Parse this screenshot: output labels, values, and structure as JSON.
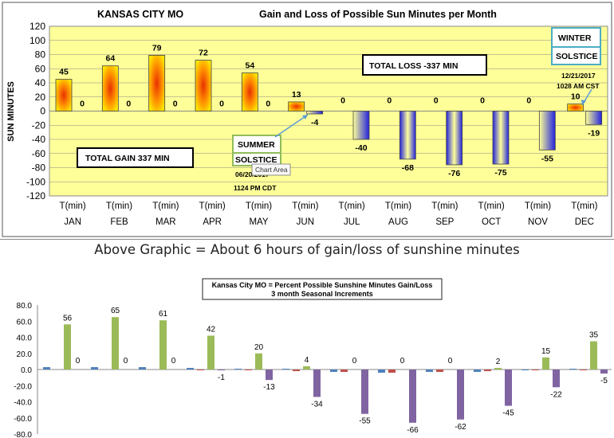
{
  "caption": "Above Graphic = About 6 hours of gain/loss of sunshine minutes",
  "chart_data": [
    {
      "type": "bar",
      "location": "KANSAS CITY MO",
      "title": "Gain and Loss of Possible Sun Minutes per Month",
      "ylabel": "SUN MINUTES",
      "ylim": [
        -120,
        120
      ],
      "y_ticks": [
        120,
        100,
        80,
        60,
        40,
        20,
        0,
        -20,
        -40,
        -60,
        -80,
        -100,
        -120
      ],
      "categories": [
        "JAN",
        "FEB",
        "MAR",
        "APR",
        "MAY",
        "JUN",
        "JUL",
        "AUG",
        "SEP",
        "OCT",
        "NOV",
        "DEC"
      ],
      "x_prefix": "T(min)",
      "series": [
        {
          "values": [
            45,
            64,
            79,
            72,
            54,
            13,
            0,
            0,
            0,
            0,
            0,
            10
          ]
        },
        {
          "values": [
            0,
            0,
            0,
            0,
            0,
            -4,
            -40,
            -68,
            -76,
            -75,
            -55,
            -19
          ]
        }
      ],
      "annotations": {
        "total_gain": "TOTAL GAIN   337 MIN",
        "total_loss": "TOTAL LOSS  -337 MIN",
        "summer_line1": "SUMMER",
        "summer_line2": "SOLSTICE",
        "summer_date": "06/20/2017",
        "summer_time": "1124 PM CDT",
        "winter_line1": "WINTER",
        "winter_line2": "SOLSTICE",
        "winter_date": "12/21/2017",
        "winter_time": "1028 AM CST",
        "tooltip": "Chart Area"
      },
      "colors": {
        "plot_bg": "#ffff99",
        "gain": "#ffd200",
        "gain_core": "#e83000",
        "loss": "#2828e0",
        "loss_fade": "#ffff99",
        "grid": "#888888"
      },
      "grid": true
    },
    {
      "type": "bar",
      "title": "Kansas City MO = Percent Possible Sunshine Minutes Gain/Loss",
      "subtitle": "3 month Seasonal Increments",
      "ylim": [
        -80,
        80
      ],
      "y_ticks": [
        "80.0",
        "60.0",
        "40.0",
        "20.0",
        "0.0",
        "-20.0",
        "-40.0",
        "-60.0",
        "-80.0"
      ],
      "groups": 12,
      "series": [
        {
          "color": "#4f81bd",
          "values": [
            3,
            3,
            3,
            2,
            1,
            1,
            -3,
            -4,
            -3,
            -3,
            -1,
            1
          ],
          "labels": []
        },
        {
          "color": "#c0504d",
          "values": [
            0,
            0,
            0,
            -1,
            -1,
            -2,
            -3,
            -4,
            -3,
            -2,
            -1,
            -1
          ],
          "labels": []
        },
        {
          "color": "#9bbb59",
          "values": [
            56,
            65,
            61,
            42,
            20,
            4,
            0,
            0,
            0,
            2,
            15,
            35
          ],
          "labels": [
            "56",
            "65",
            "61",
            "42",
            "20",
            "4",
            "0",
            "0",
            "0",
            "2",
            "15",
            "35"
          ]
        },
        {
          "color": "#8064a2",
          "values": [
            0,
            0,
            0,
            -1,
            -13,
            -34,
            -55,
            -66,
            -62,
            -45,
            -22,
            -5
          ],
          "labels": [
            "0",
            "0",
            "0",
            "-1",
            "-13",
            "-34",
            "-55",
            "-66",
            "-62",
            "-45",
            "-22",
            "-5"
          ]
        }
      ],
      "grid": false
    }
  ]
}
